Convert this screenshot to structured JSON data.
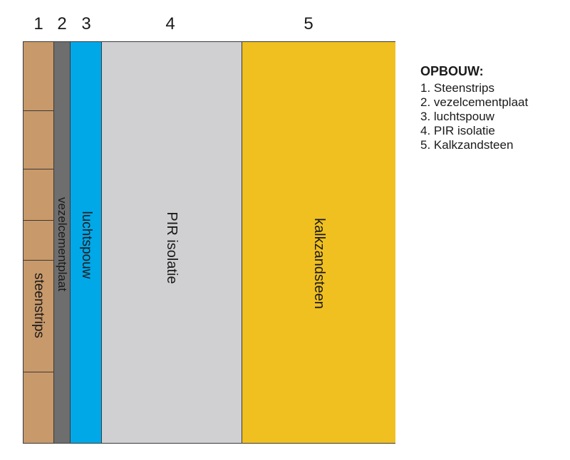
{
  "layer_numbers": [
    "1",
    "2",
    "3",
    "4",
    "5"
  ],
  "layers": [
    {
      "label": "steenstrips",
      "color": "#c8996a"
    },
    {
      "label": "vezelcementplaat",
      "color": "#6e6e6e"
    },
    {
      "label": "luchtspouw",
      "color": "#00a8e8"
    },
    {
      "label": "PIR isolatie",
      "color": "#d0d0d2"
    },
    {
      "label": "kalkzandsteen",
      "color": "#f0c020"
    }
  ],
  "legend": {
    "title": "OPBOUW:",
    "items": [
      "1. Steenstrips",
      "2. vezelcementplaat",
      "3. luchtspouw",
      "4. PIR isolatie",
      "5. Kalkzandsteen"
    ]
  }
}
